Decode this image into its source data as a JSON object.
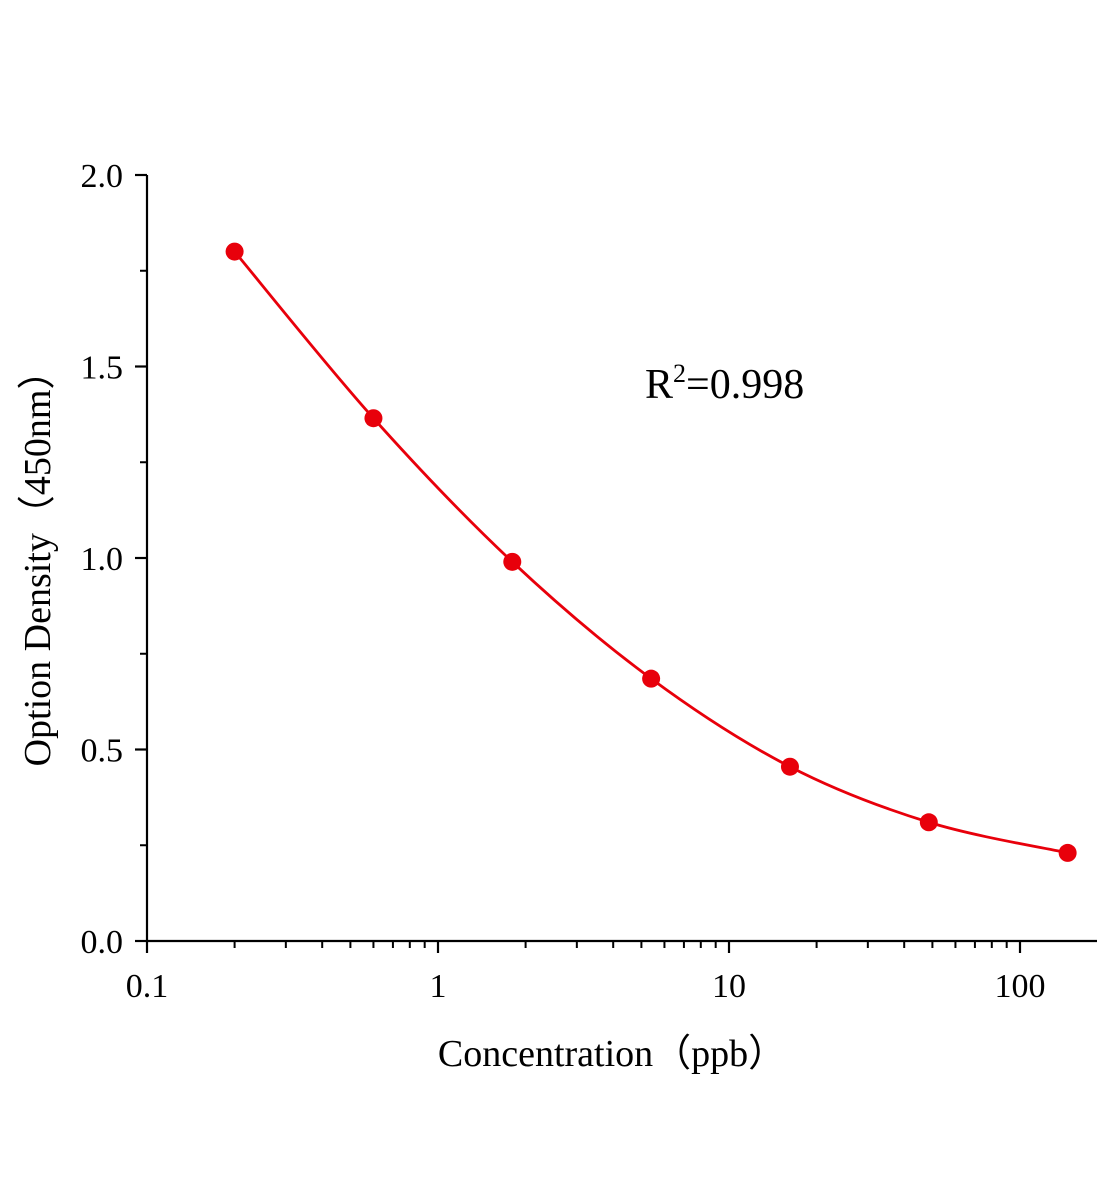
{
  "chart_data": {
    "type": "scatter",
    "xlabel": "Concentration（ppb）",
    "ylabel": "Option Density（450nm）",
    "xscale": "log",
    "xlim": [
      0.1,
      180
    ],
    "ylim": [
      0.0,
      2.0
    ],
    "x_ticks": [
      0.1,
      1,
      10,
      100
    ],
    "x_tick_labels": [
      "0.1",
      "1",
      "10",
      "100"
    ],
    "y_ticks": [
      0.0,
      0.5,
      1.0,
      1.5,
      2.0
    ],
    "y_tick_labels": [
      "0.0",
      "0.5",
      "1.0",
      "1.5",
      "2.0"
    ],
    "grid": false,
    "annotation": {
      "prefix": "R",
      "sup": "2",
      "suffix": "=0.998"
    },
    "series": [
      {
        "x": [
          0.2,
          0.6,
          1.8,
          5.4,
          16.2,
          48.6,
          145.8
        ],
        "y": [
          1.8,
          1.365,
          0.99,
          0.685,
          0.455,
          0.31,
          0.23
        ],
        "color": "#e8000b",
        "marker": "circle",
        "fit_curve": true
      }
    ]
  }
}
